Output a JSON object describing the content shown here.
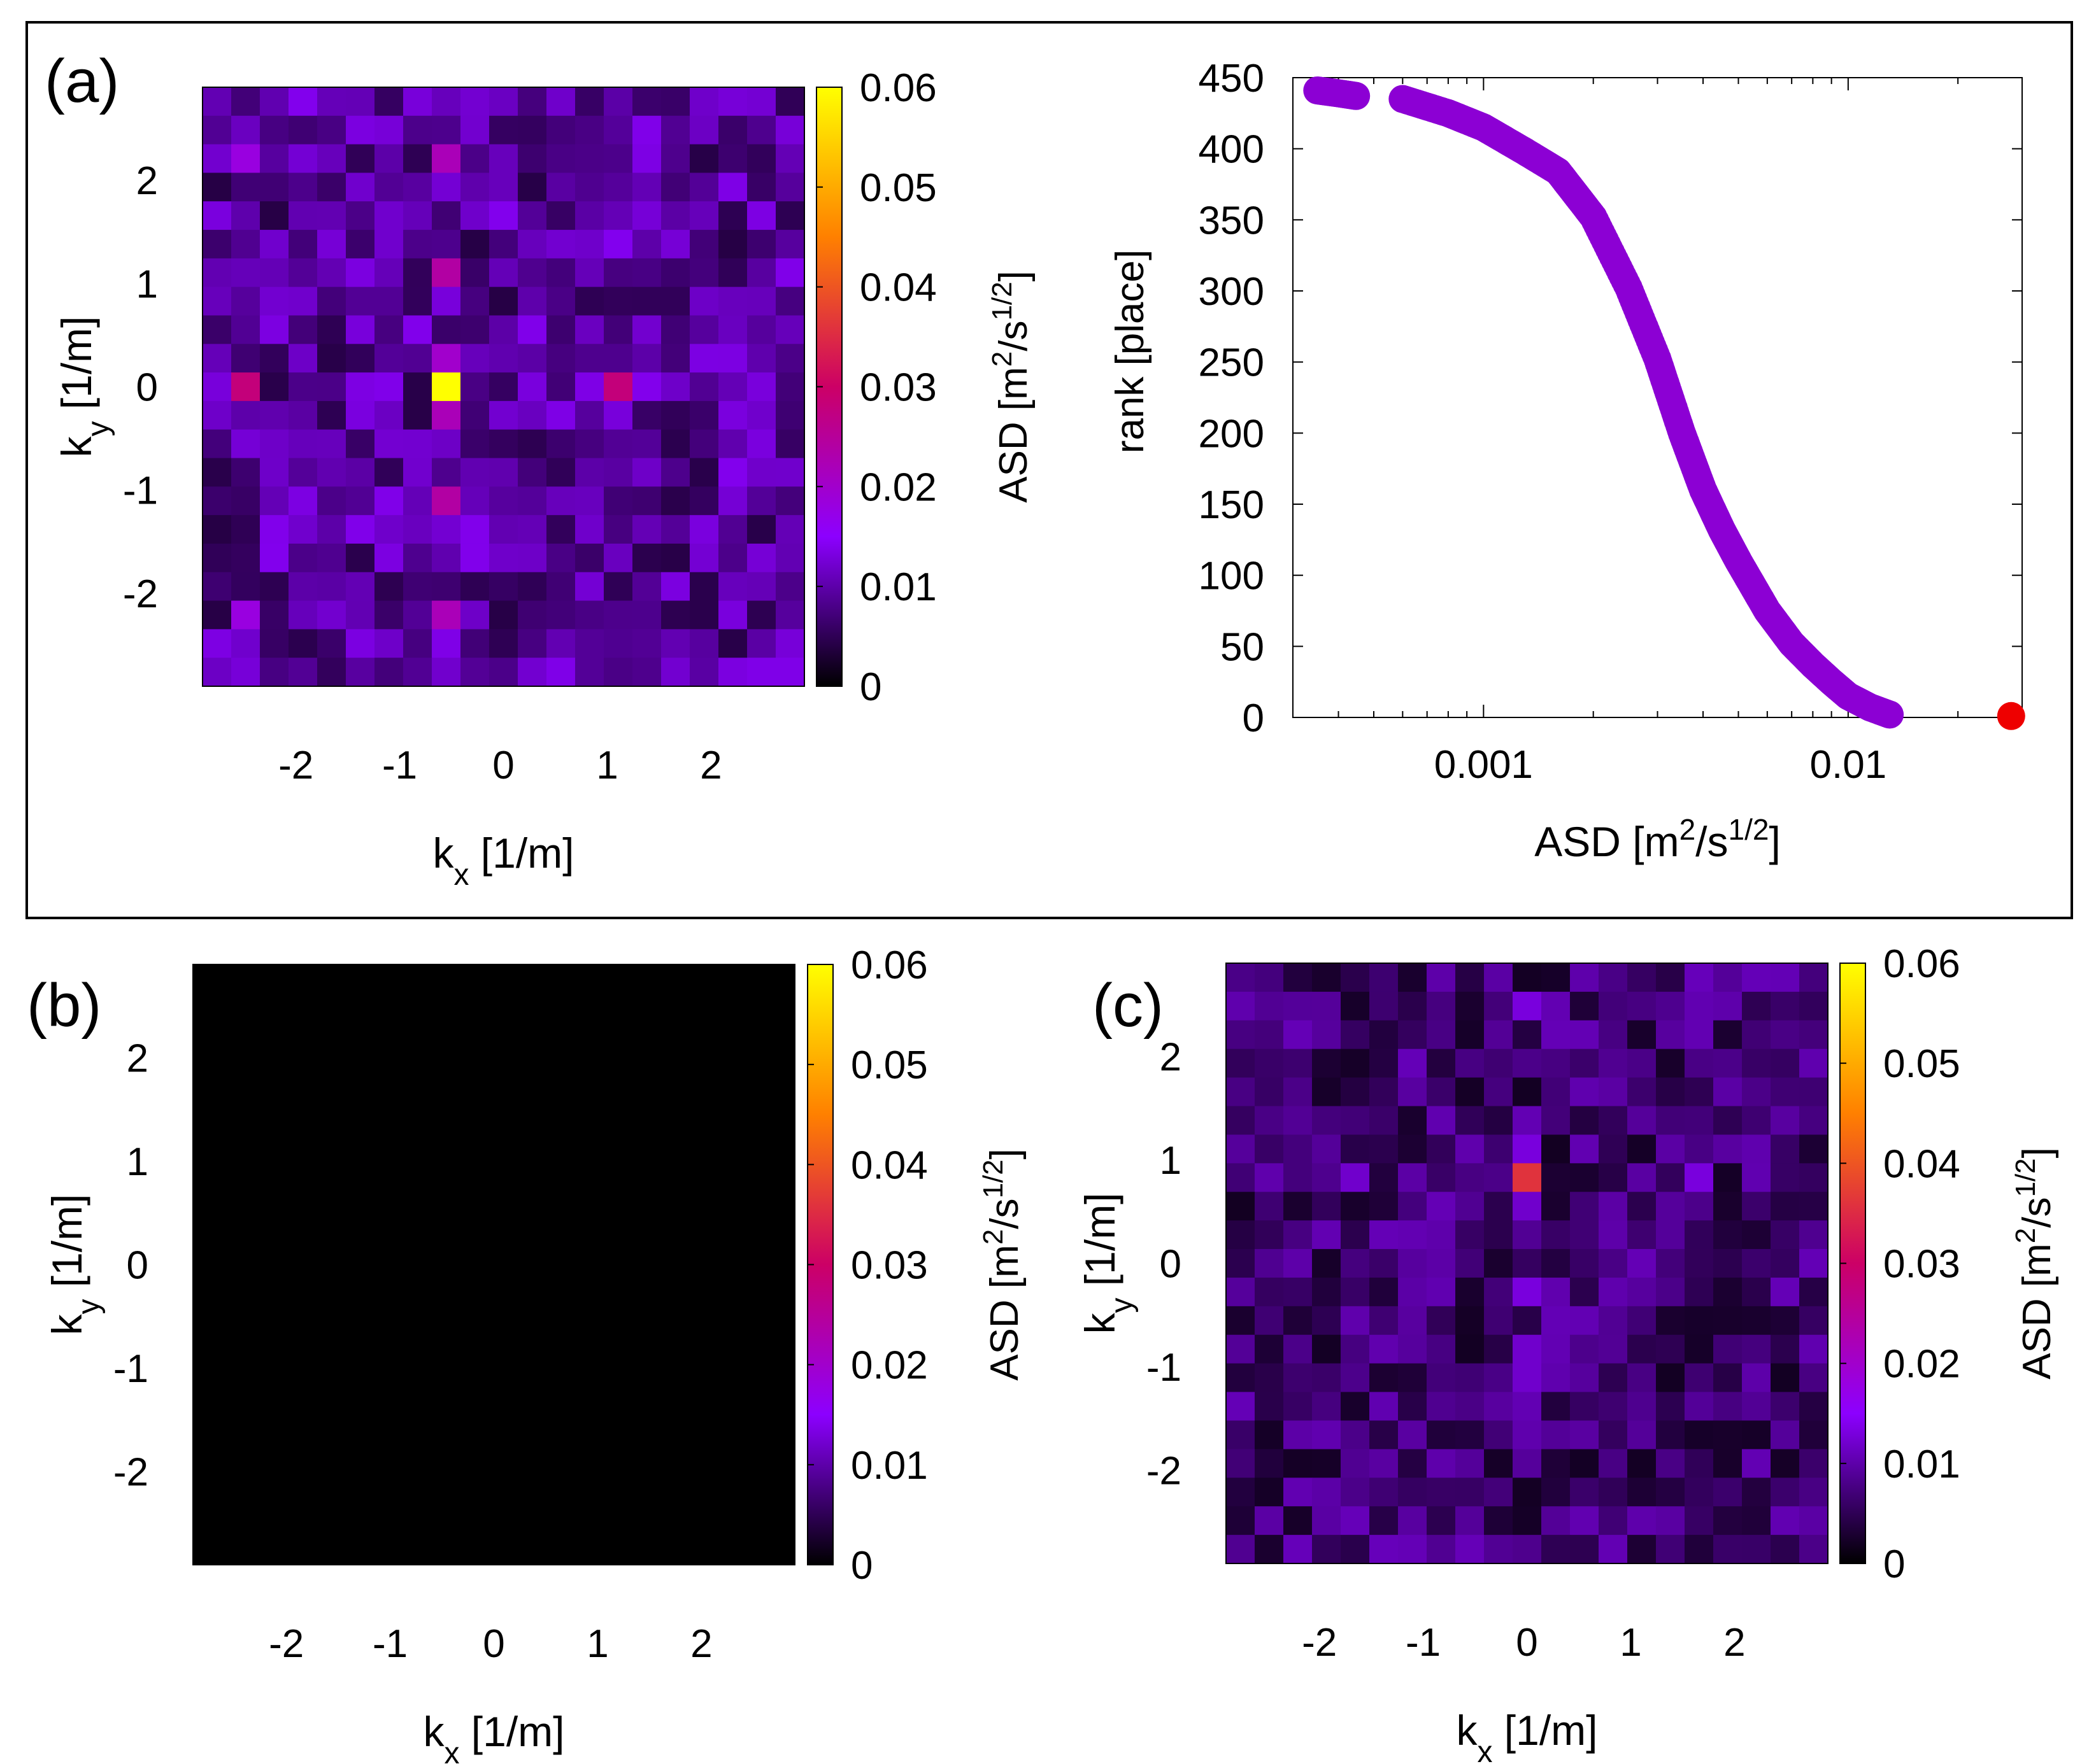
{
  "colormap": {
    "name": "gnuplot",
    "stops": [
      "#000000",
      "#8c00ff",
      "#cc0066",
      "#ff8000",
      "#ffff00"
    ],
    "range": [
      0,
      0.06
    ]
  },
  "chart_data": [
    {
      "panel": "(a)",
      "type": "heatmap",
      "grid_size": 21,
      "xlabel_main": "k",
      "xlabel_sub": "x",
      "xlabel_rest": " [1/m]",
      "ylabel_main": "k",
      "ylabel_sub": "y",
      "ylabel_rest": " [1/m]",
      "xlim": [
        -2.9,
        2.9
      ],
      "ylim": [
        -2.9,
        2.9
      ],
      "xticks": [
        -2,
        -1,
        0,
        1,
        2
      ],
      "yticks": [
        -2,
        -1,
        0,
        1,
        2
      ],
      "colorbar_label": "ASD [m",
      "colorbar_label_sup": "2",
      "colorbar_label_mid": "/s",
      "colorbar_label_sup2": "1/2",
      "colorbar_label_end": "]",
      "colorbar_ticks": [
        0,
        0.01,
        0.02,
        0.03,
        0.04,
        0.05,
        0.06
      ],
      "colorbar_tick_labels": [
        "0",
        "0.01",
        "0.02",
        "0.03",
        "0.04",
        "0.05",
        "0.06"
      ],
      "baseline": {
        "min": 0.004,
        "max": 0.014
      },
      "highlights": [
        {
          "kx": -0.57,
          "ky": 0,
          "value": 0.06
        },
        {
          "kx": -2.5,
          "ky": 0,
          "value": 0.028
        },
        {
          "kx": 1.1,
          "ky": 0,
          "value": 0.028
        },
        {
          "kx": -0.57,
          "ky": 2.2,
          "value": 0.022
        },
        {
          "kx": -0.57,
          "ky": 1.1,
          "value": 0.024
        },
        {
          "kx": -0.57,
          "ky": -1.1,
          "value": 0.024
        },
        {
          "kx": -0.57,
          "ky": -2.2,
          "value": 0.022
        },
        {
          "kx": -0.57,
          "ky": -0.3,
          "value": 0.022
        },
        {
          "kx": -0.57,
          "ky": 0.3,
          "value": 0.02
        },
        {
          "kx": -2.5,
          "ky": 2.2,
          "value": 0.018
        },
        {
          "kx": -2.5,
          "ky": -2.2,
          "value": 0.018
        }
      ]
    },
    {
      "panel": "(a)",
      "type": "scatter",
      "xscale": "log",
      "xlim": [
        0.0003,
        0.03
      ],
      "ylim": [
        0,
        450
      ],
      "xlabel": "ASD [m",
      "xlabel_sup": "2",
      "xlabel_mid": "/s",
      "xlabel_sup2": "1/2",
      "xlabel_end": "]",
      "ylabel": "rank  [place]",
      "xticks": [
        0.001,
        0.01
      ],
      "xtick_labels": [
        "0.001",
        "0.01"
      ],
      "yticks": [
        0,
        50,
        100,
        150,
        200,
        250,
        300,
        350,
        400,
        450
      ],
      "series_color": "#8c00d4",
      "outlier_color": "#ee0000",
      "curve": [
        [
          0.00035,
          441
        ],
        [
          0.0004,
          439
        ],
        [
          0.00045,
          437
        ],
        [
          0.0006,
          435
        ],
        [
          0.0008,
          425
        ],
        [
          0.001,
          415
        ],
        [
          0.0013,
          398
        ],
        [
          0.0016,
          384
        ],
        [
          0.002,
          352
        ],
        [
          0.0025,
          302
        ],
        [
          0.003,
          252
        ],
        [
          0.0035,
          200
        ],
        [
          0.004,
          160
        ],
        [
          0.0045,
          132
        ],
        [
          0.005,
          110
        ],
        [
          0.006,
          75
        ],
        [
          0.007,
          52
        ],
        [
          0.008,
          37
        ],
        [
          0.009,
          25
        ],
        [
          0.01,
          15
        ],
        [
          0.0115,
          7
        ],
        [
          0.013,
          2
        ]
      ],
      "gap_between": [
        0.00048,
        0.00058
      ],
      "outlier": {
        "x": 0.028,
        "y": 1
      }
    },
    {
      "panel": "(b)",
      "type": "heatmap",
      "grid_size": 21,
      "xlabel_main": "k",
      "xlabel_sub": "x",
      "xlabel_rest": " [1/m]",
      "ylabel_main": "k",
      "ylabel_sub": "y",
      "ylabel_rest": " [1/m]",
      "xlim": [
        -2.9,
        2.9
      ],
      "ylim": [
        -2.9,
        2.9
      ],
      "xticks": [
        -2,
        -1,
        0,
        1,
        2
      ],
      "yticks": [
        -2,
        -1,
        0,
        1,
        2
      ],
      "colorbar_label": "ASD [m",
      "colorbar_label_sup": "2",
      "colorbar_label_mid": "/s",
      "colorbar_label_sup2": "1/2",
      "colorbar_label_end": "]",
      "colorbar_ticks": [
        0,
        0.01,
        0.02,
        0.03,
        0.04,
        0.05,
        0.06
      ],
      "colorbar_tick_labels": [
        "0",
        "0.01",
        "0.02",
        "0.03",
        "0.04",
        "0.05",
        "0.06"
      ],
      "baseline": {
        "min": 0,
        "max": 0
      },
      "highlights": []
    },
    {
      "panel": "(c)",
      "type": "heatmap",
      "grid_size": 21,
      "xlabel_main": "k",
      "xlabel_sub": "x",
      "xlabel_rest": " [1/m]",
      "ylabel_main": "k",
      "ylabel_sub": "y",
      "ylabel_rest": " [1/m]",
      "xlim": [
        -2.9,
        2.9
      ],
      "ylim": [
        -2.9,
        2.9
      ],
      "xticks": [
        -2,
        -1,
        0,
        1,
        2
      ],
      "yticks": [
        -2,
        -1,
        0,
        1,
        2
      ],
      "colorbar_label": "ASD [m",
      "colorbar_label_sup": "2",
      "colorbar_label_mid": "/s",
      "colorbar_label_sup2": "1/2",
      "colorbar_label_end": "]",
      "colorbar_ticks": [
        0,
        0.01,
        0.02,
        0.03,
        0.04,
        0.05,
        0.06
      ],
      "colorbar_tick_labels": [
        "0",
        "0.01",
        "0.02",
        "0.03",
        "0.04",
        "0.05",
        "0.06"
      ],
      "baseline": {
        "min": 0.002,
        "max": 0.011
      },
      "highlights": [
        {
          "kx": 0,
          "ky": 0.85,
          "value": 0.036
        },
        {
          "kx": 0,
          "ky": 1.1,
          "value": 0.013
        },
        {
          "kx": 0,
          "ky": 0.55,
          "value": 0.012
        },
        {
          "kx": 0,
          "ky": -0.3,
          "value": 0.013
        },
        {
          "kx": 0,
          "ky": -0.85,
          "value": 0.012
        },
        {
          "kx": 0,
          "ky": -1.1,
          "value": 0.012
        },
        {
          "kx": 0,
          "ky": 2.4,
          "value": 0.013
        },
        {
          "kx": 1.7,
          "ky": 0.85,
          "value": 0.013
        },
        {
          "kx": -1.7,
          "ky": 0.85,
          "value": 0.012
        }
      ]
    }
  ]
}
